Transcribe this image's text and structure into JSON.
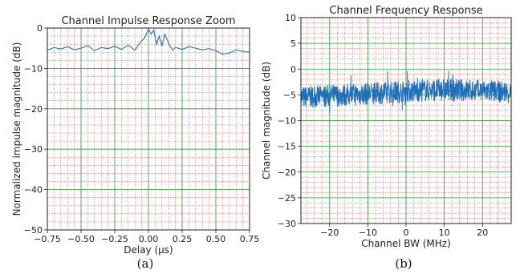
{
  "chart_data": [
    {
      "type": "line",
      "panel_label": "(a)",
      "title": "Channel Impulse Response Zoom",
      "xlabel": "Delay (µs)",
      "ylabel": "Normalized impulse magnitude (dB)",
      "xlim": [
        -0.75,
        0.75
      ],
      "ylim": [
        -50,
        0
      ],
      "x_ticks": [
        "−0.75",
        "−0.50",
        "−0.25",
        "0.00",
        "0.25",
        "0.50",
        "0.75"
      ],
      "y_ticks": [
        "0",
        "−10",
        "−20",
        "−30",
        "−40",
        "−50"
      ],
      "grid": "major green, minor red dotted",
      "series": [
        {
          "color": "#3a78b5",
          "x": [
            -0.75,
            -0.7,
            -0.65,
            -0.6,
            -0.55,
            -0.5,
            -0.45,
            -0.4,
            -0.35,
            -0.3,
            -0.25,
            -0.2,
            -0.15,
            -0.1,
            -0.06,
            -0.03,
            0.0,
            0.02,
            0.04,
            0.06,
            0.08,
            0.1,
            0.12,
            0.14,
            0.16,
            0.18,
            0.2,
            0.25,
            0.3,
            0.35,
            0.4,
            0.45,
            0.5,
            0.55,
            0.6,
            0.65,
            0.7,
            0.75
          ],
          "y": [
            -5.5,
            -4.8,
            -5.2,
            -4.6,
            -5.4,
            -5.0,
            -4.3,
            -5.6,
            -4.8,
            -5.1,
            -4.5,
            -5.3,
            -4.2,
            -5.5,
            -3.5,
            -2.5,
            -0.3,
            -1.5,
            -0.5,
            -4.0,
            -2.0,
            -4.5,
            -1.5,
            -3.0,
            -4.5,
            -5.5,
            -4.8,
            -5.3,
            -4.6,
            -5.0,
            -5.4,
            -5.1,
            -5.6,
            -6.5,
            -6.2,
            -5.4,
            -5.8,
            -6.0
          ]
        }
      ]
    },
    {
      "type": "line",
      "panel_label": "(b)",
      "title": "Channel Frequency Response",
      "xlabel": "Channel BW (MHz)",
      "ylabel": "Channel magnitude (dB)",
      "xlim": [
        -27.5,
        27.5
      ],
      "ylim": [
        -30,
        10
      ],
      "x_ticks": [
        "−20",
        "−10",
        "0",
        "10",
        "20"
      ],
      "y_ticks": [
        "10",
        "5",
        "0",
        "−5",
        "−10",
        "−15",
        "−20",
        "−25",
        "−30"
      ],
      "grid": "major green, minor red dotted",
      "series": [
        {
          "color": "#1f6fb8",
          "note_values": "dense noisy band",
          "x_range": [
            -27.5,
            27.5
          ],
          "center_profile": {
            "x": [
              -27.5,
              -20,
              -10,
              0,
              10,
              20,
              27.5
            ],
            "y": [
              -5.5,
              -5.2,
              -4.8,
              -4.3,
              -4.0,
              -4.2,
              -4.5
            ]
          },
          "spread_dB": 2.2
        }
      ]
    }
  ],
  "captions": [
    "(a)",
    "(b)"
  ]
}
